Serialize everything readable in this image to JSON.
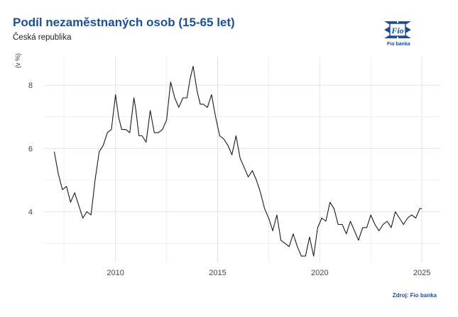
{
  "title": "Podíl nezaměstnaných osob (15-65 let)",
  "subtitle": "Česká republika",
  "unit_label": "(v %)",
  "logo_text": "Fio banka",
  "logo_mark": "Fio",
  "source": "Zdroj: Fio banka",
  "colors": {
    "title": "#1d4f91",
    "line": "#1a1a1a",
    "grid": "#e3e3e3"
  },
  "chart_data": {
    "type": "line",
    "title": "Podíl nezaměstnaných osob (15-65 let)",
    "subtitle": "Česká republika",
    "ylabel": "(v %)",
    "xlim": [
      2006.5,
      2025.9
    ],
    "ylim": [
      2.4,
      8.9
    ],
    "xticks": [
      2010,
      2015,
      2020,
      2025
    ],
    "yticks": [
      4,
      6,
      8
    ],
    "grid": true,
    "legend": "none",
    "series": [
      {
        "x": [
          2007.0,
          2007.2,
          2007.4,
          2007.6,
          2007.8,
          2008.0,
          2008.2,
          2008.4,
          2008.6,
          2008.8,
          2009.0,
          2009.2,
          2009.4,
          2009.6,
          2009.8,
          2010.0,
          2010.15,
          2010.3,
          2010.5,
          2010.7,
          2010.9,
          2011.0,
          2011.15,
          2011.3,
          2011.5,
          2011.7,
          2011.9,
          2012.1,
          2012.3,
          2012.5,
          2012.7,
          2012.9,
          2013.1,
          2013.3,
          2013.5,
          2013.65,
          2013.8,
          2014.0,
          2014.15,
          2014.3,
          2014.5,
          2014.7,
          2014.9,
          2015.1,
          2015.3,
          2015.5,
          2015.7,
          2015.9,
          2016.1,
          2016.3,
          2016.5,
          2016.7,
          2016.9,
          2017.1,
          2017.3,
          2017.5,
          2017.7,
          2017.9,
          2018.1,
          2018.3,
          2018.5,
          2018.7,
          2018.9,
          2019.1,
          2019.3,
          2019.5,
          2019.7,
          2019.9,
          2020.1,
          2020.3,
          2020.5,
          2020.7,
          2020.9,
          2021.1,
          2021.3,
          2021.5,
          2021.7,
          2021.9,
          2022.1,
          2022.3,
          2022.5,
          2022.7,
          2022.9,
          2023.1,
          2023.3,
          2023.5,
          2023.7,
          2023.9,
          2024.1,
          2024.3,
          2024.5,
          2024.7,
          2024.9,
          2025.0
        ],
        "y": [
          5.9,
          5.2,
          4.7,
          4.8,
          4.3,
          4.6,
          4.2,
          3.8,
          4.0,
          3.9,
          5.0,
          5.9,
          6.1,
          6.5,
          6.6,
          7.7,
          7.0,
          6.6,
          6.6,
          6.5,
          7.6,
          7.2,
          6.4,
          6.4,
          6.2,
          7.2,
          6.5,
          6.5,
          6.6,
          6.9,
          8.1,
          7.6,
          7.3,
          7.6,
          7.6,
          8.2,
          8.6,
          7.8,
          7.4,
          7.4,
          7.3,
          7.7,
          7.0,
          6.4,
          6.3,
          6.1,
          5.8,
          6.4,
          5.7,
          5.4,
          5.1,
          5.3,
          5.0,
          4.6,
          4.1,
          3.8,
          3.4,
          3.9,
          3.1,
          3.0,
          2.9,
          3.3,
          2.9,
          2.6,
          2.6,
          3.2,
          2.6,
          3.5,
          3.8,
          3.7,
          4.3,
          4.1,
          3.6,
          3.6,
          3.3,
          3.7,
          3.4,
          3.1,
          3.5,
          3.5,
          3.9,
          3.6,
          3.4,
          3.6,
          3.7,
          3.5,
          4.0,
          3.8,
          3.6,
          3.8,
          3.9,
          3.8,
          4.1,
          4.1
        ]
      }
    ]
  }
}
